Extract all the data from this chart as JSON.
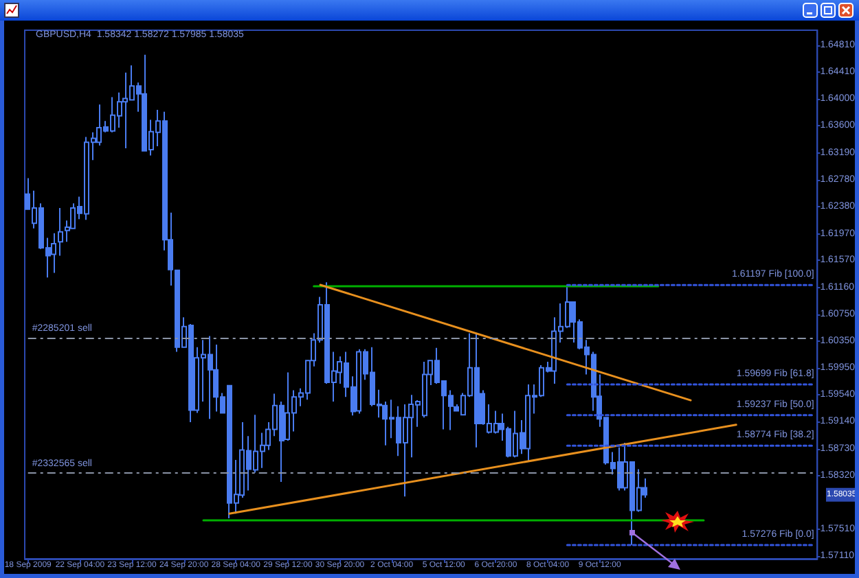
{
  "chart_data": {
    "type": "candlestick",
    "title": "GBPUSD,H4  1.58342 1.58272 1.57985 1.58035",
    "categories": [
      "18 Sep 2009",
      null,
      null,
      null,
      null,
      null,
      null,
      null,
      "22 Sep 04:00",
      null,
      null,
      null,
      null,
      null,
      null,
      null,
      "23 Sep 12:00",
      null,
      null,
      null,
      null,
      null,
      null,
      null,
      "24 Sep 20:00",
      null,
      null,
      null,
      null,
      null,
      null,
      null,
      "28 Sep 04:00",
      null,
      null,
      null,
      null,
      null,
      null,
      null,
      "29 Sep 12:00",
      null,
      null,
      null,
      null,
      null,
      null,
      null,
      "30 Sep 20:00",
      null,
      null,
      null,
      null,
      null,
      null,
      null,
      "2 Oct 04:00",
      null,
      null,
      null,
      null,
      null,
      null,
      null,
      "5 Oct 12:00",
      null,
      null,
      null,
      null,
      null,
      null,
      null,
      "6 Oct 20:00",
      null,
      null,
      null,
      null,
      null,
      null,
      null,
      "8 Oct 04:00",
      null,
      null,
      null,
      null,
      null,
      null,
      null,
      "9 Oct 12:00",
      null,
      null,
      null,
      null,
      null,
      null,
      null,
      null,
      null,
      null,
      null,
      null,
      null,
      null,
      null,
      null,
      null,
      null,
      null,
      null,
      null,
      null,
      null,
      null,
      null,
      null,
      null,
      null,
      null,
      null,
      null,
      null,
      null
    ],
    "ylim": [
      1.5707,
      1.6504
    ],
    "yticks": [
      {
        "value": 1.6481,
        "label": "1.64810"
      },
      {
        "value": 1.6441,
        "label": "1.64410"
      },
      {
        "value": 1.64,
        "label": "1.64000"
      },
      {
        "value": 1.636,
        "label": "1.63600"
      },
      {
        "value": 1.6319,
        "label": "1.63190"
      },
      {
        "value": 1.6278,
        "label": "1.62780"
      },
      {
        "value": 1.6238,
        "label": "1.62380"
      },
      {
        "value": 1.6197,
        "label": "1.61970"
      },
      {
        "value": 1.6157,
        "label": "1.61570"
      },
      {
        "value": 1.6116,
        "label": "1.61160"
      },
      {
        "value": 1.6075,
        "label": "1.60750"
      },
      {
        "value": 1.6035,
        "label": "1.60350"
      },
      {
        "value": 1.5995,
        "label": "1.59950"
      },
      {
        "value": 1.5954,
        "label": "1.59540"
      },
      {
        "value": 1.5914,
        "label": "1.59140"
      },
      {
        "value": 1.5873,
        "label": "1.58730"
      },
      {
        "value": 1.5832,
        "label": "1.58320"
      },
      {
        "value": 1.5751,
        "label": "1.57510"
      },
      {
        "value": 1.5711,
        "label": "1.57110"
      }
    ],
    "marker": "none",
    "series": [
      {
        "color": "#4a7cf0",
        "ohlc": [
          [
            1.6257,
            1.6281,
            1.6233,
            1.6234
          ],
          [
            1.6213,
            1.6262,
            1.6205,
            1.6236
          ],
          [
            1.6236,
            1.6243,
            1.6174,
            1.6176
          ],
          [
            1.6176,
            1.6191,
            1.6131,
            1.6164
          ],
          [
            1.6166,
            1.6198,
            1.6138,
            1.6182
          ],
          [
            1.6185,
            1.6236,
            1.6164,
            1.62
          ],
          [
            1.6202,
            1.6217,
            1.6185,
            1.6207
          ],
          [
            1.6205,
            1.6243,
            1.6204,
            1.6236
          ],
          [
            1.6238,
            1.6253,
            1.6219,
            1.6228
          ],
          [
            1.6227,
            1.6343,
            1.6218,
            1.6335
          ],
          [
            1.6335,
            1.635,
            1.6308,
            1.6341
          ],
          [
            1.6335,
            1.6392,
            1.633,
            1.6357
          ],
          [
            1.6358,
            1.6367,
            1.635,
            1.6352
          ],
          [
            1.6352,
            1.6403,
            1.635,
            1.6376
          ],
          [
            1.6375,
            1.641,
            1.6357,
            1.6396
          ],
          [
            1.6396,
            1.644,
            1.6326,
            1.6401
          ],
          [
            1.6399,
            1.6451,
            1.6398,
            1.642
          ],
          [
            1.642,
            1.6425,
            1.6381,
            1.6408
          ],
          [
            1.6408,
            1.6467,
            1.6321,
            1.6322
          ],
          [
            1.6324,
            1.6369,
            1.6315,
            1.6351
          ],
          [
            1.635,
            1.6384,
            1.6329,
            1.6367
          ],
          [
            1.6367,
            1.6381,
            1.6172,
            1.6188
          ],
          [
            1.6188,
            1.6229,
            1.6119,
            1.6143
          ],
          [
            1.6142,
            1.6143,
            1.6019,
            1.6026
          ],
          [
            1.6026,
            1.6071,
            1.6025,
            1.6057
          ],
          [
            1.6059,
            1.6061,
            1.5913,
            1.5931
          ],
          [
            1.5931,
            1.6026,
            1.5927,
            1.601
          ],
          [
            1.601,
            1.6037,
            1.5944,
            1.6015
          ],
          [
            1.6015,
            1.6043,
            1.5918,
            1.5992
          ],
          [
            1.5992,
            1.603,
            1.5929,
            1.5951
          ],
          [
            1.5951,
            1.5957,
            1.5926,
            1.5927
          ],
          [
            1.5968,
            1.5969,
            1.5768,
            1.5791
          ],
          [
            1.5791,
            1.5856,
            1.5775,
            1.5804
          ],
          [
            1.5803,
            1.5913,
            1.5799,
            1.5871
          ],
          [
            1.587,
            1.5892,
            1.581,
            1.5842
          ],
          [
            1.5841,
            1.5924,
            1.5837,
            1.5869
          ],
          [
            1.5869,
            1.5897,
            1.5844,
            1.5878
          ],
          [
            1.5878,
            1.5913,
            1.5871,
            1.5902
          ],
          [
            1.5902,
            1.5956,
            1.5892,
            1.5938
          ],
          [
            1.5938,
            1.5944,
            1.5823,
            1.5885
          ],
          [
            1.5887,
            1.5988,
            1.5885,
            1.5927
          ],
          [
            1.5927,
            1.5961,
            1.5899,
            1.5951
          ],
          [
            1.5951,
            1.5964,
            1.5937,
            1.5957
          ],
          [
            1.5957,
            1.6007,
            1.5947,
            1.6006
          ],
          [
            1.6006,
            1.6047,
            1.5997,
            1.6037
          ],
          [
            1.6037,
            1.6102,
            1.6033,
            1.609
          ],
          [
            1.609,
            1.6124,
            1.5971,
            1.5973
          ],
          [
            1.5973,
            1.6019,
            1.5944,
            1.599
          ],
          [
            1.5988,
            1.6012,
            1.5971,
            1.6004
          ],
          [
            1.6002,
            1.6019,
            1.5951,
            1.5966
          ],
          [
            1.5966,
            1.5982,
            1.5923,
            1.5929
          ],
          [
            1.593,
            1.6023,
            1.5926,
            1.6019
          ],
          [
            1.6019,
            1.6023,
            1.5977,
            1.5986
          ],
          [
            1.5988,
            1.6026,
            1.5937,
            1.594
          ],
          [
            1.5938,
            1.5962,
            1.592,
            1.594
          ],
          [
            1.5938,
            1.5944,
            1.5878,
            1.5918
          ],
          [
            1.592,
            1.5947,
            1.5889,
            1.5918
          ],
          [
            1.592,
            1.5937,
            1.5862,
            1.5882
          ],
          [
            1.5882,
            1.594,
            1.5801,
            1.592
          ],
          [
            1.592,
            1.5954,
            1.586,
            1.594
          ],
          [
            1.5939,
            1.5946,
            1.5906,
            1.5944
          ],
          [
            1.5923,
            1.6004,
            1.592,
            1.5985
          ],
          [
            1.5985,
            1.6007,
            1.5969,
            1.6006
          ],
          [
            1.6006,
            1.6025,
            1.5971,
            1.5973
          ],
          [
            1.5975,
            1.5976,
            1.5902,
            1.5953
          ],
          [
            1.5953,
            1.5961,
            1.5901,
            1.5937
          ],
          [
            1.5936,
            1.594,
            1.5929,
            1.593
          ],
          [
            1.5924,
            1.5957,
            1.5923,
            1.5953
          ],
          [
            1.5953,
            1.6047,
            1.5951,
            1.5995
          ],
          [
            1.5995,
            1.6047,
            1.5875,
            1.5911
          ],
          [
            1.5956,
            1.5961,
            1.5909,
            1.5911
          ],
          [
            1.5898,
            1.594,
            1.5896,
            1.5911
          ],
          [
            1.5898,
            1.593,
            1.5896,
            1.5911
          ],
          [
            1.5911,
            1.5926,
            1.5885,
            1.5902
          ],
          [
            1.5903,
            1.5906,
            1.586,
            1.5862
          ],
          [
            1.5862,
            1.593,
            1.586,
            1.5896
          ],
          [
            1.5897,
            1.5916,
            1.5865,
            1.5873
          ],
          [
            1.5873,
            1.597,
            1.5854,
            1.5953
          ],
          [
            1.5953,
            1.597,
            1.5926,
            1.5951
          ],
          [
            1.5953,
            1.5999,
            1.5951,
            1.5995
          ],
          [
            1.5995,
            1.6004,
            1.5988,
            1.599
          ],
          [
            1.599,
            1.6071,
            1.5971,
            1.605
          ],
          [
            1.605,
            1.6092,
            1.6033,
            1.6057
          ],
          [
            1.6057,
            1.612,
            1.6055,
            1.6094
          ],
          [
            1.6094,
            1.6095,
            1.6033,
            1.6064
          ],
          [
            1.6064,
            1.6068,
            1.6023,
            1.6025
          ],
          [
            1.6026,
            1.6037,
            1.5985,
            1.6015
          ],
          [
            1.6015,
            1.6019,
            1.593,
            1.5951
          ],
          [
            1.5952,
            1.5985,
            1.5906,
            1.5918
          ],
          [
            1.592,
            1.5921,
            1.5849,
            1.5852
          ],
          [
            1.5852,
            1.5868,
            1.5834,
            1.5843
          ],
          [
            1.5853,
            1.5875,
            1.581,
            1.5814
          ],
          [
            1.5814,
            1.5882,
            1.581,
            1.5853
          ],
          [
            1.5853,
            1.5854,
            1.5728,
            1.578
          ],
          [
            1.578,
            1.5842,
            1.5778,
            1.5814
          ],
          [
            1.5814,
            1.5828,
            1.5799,
            1.58035
          ],
          null,
          null,
          null,
          null,
          null,
          null,
          null,
          null,
          null,
          null,
          null,
          null,
          null,
          null,
          null,
          null,
          null,
          null,
          null,
          null,
          null,
          null,
          null,
          null,
          null,
          null
        ]
      },
      {
        "type": "line",
        "color": "#00b000",
        "line_style": "solid",
        "values": [
          null,
          null,
          null,
          null,
          null,
          null,
          null,
          null,
          null,
          null,
          null,
          null,
          null,
          null,
          null,
          null,
          null,
          null,
          null,
          null,
          null,
          null,
          null,
          null,
          null,
          null,
          null,
          null,
          null,
          null,
          null,
          null,
          null,
          null,
          null,
          null,
          null,
          null,
          null,
          null,
          null,
          null,
          null,
          null,
          1.6118,
          null,
          null,
          null,
          null,
          null,
          null,
          null,
          null,
          null,
          null,
          null,
          null,
          null,
          null,
          null,
          null,
          null,
          null,
          null,
          null,
          null,
          null,
          null,
          null,
          null,
          null,
          null,
          null,
          null,
          null,
          null,
          null,
          null,
          null,
          null,
          null,
          null,
          null,
          null,
          null,
          null,
          null,
          null,
          null,
          null,
          null,
          null,
          null,
          null,
          null,
          null,
          null,
          1.6118,
          null,
          null,
          null,
          null,
          null,
          null,
          null,
          null,
          null,
          null,
          null,
          null,
          null,
          null,
          null,
          null,
          null,
          null,
          null,
          null,
          null,
          null,
          null,
          null
        ]
      },
      {
        "type": "line",
        "color": "#00b000",
        "line_style": "solid",
        "values": [
          null,
          null,
          null,
          null,
          null,
          null,
          null,
          null,
          null,
          null,
          null,
          null,
          null,
          null,
          null,
          null,
          null,
          null,
          null,
          null,
          null,
          null,
          null,
          null,
          null,
          null,
          null,
          1.5765,
          null,
          null,
          null,
          null,
          null,
          null,
          null,
          null,
          null,
          null,
          null,
          null,
          null,
          null,
          null,
          null,
          null,
          null,
          null,
          null,
          null,
          null,
          null,
          null,
          null,
          null,
          null,
          null,
          null,
          null,
          null,
          null,
          null,
          null,
          null,
          null,
          null,
          null,
          null,
          null,
          null,
          null,
          null,
          null,
          null,
          null,
          null,
          null,
          null,
          null,
          null,
          null,
          null,
          null,
          null,
          null,
          null,
          null,
          null,
          null,
          null,
          null,
          null,
          null,
          null,
          null,
          null,
          null,
          null,
          null,
          null,
          null,
          null,
          null,
          null,
          null,
          1.5765,
          null,
          null,
          null,
          null,
          null,
          null,
          null,
          null,
          null,
          null,
          null,
          null,
          null,
          null,
          null,
          null,
          null
        ]
      },
      {
        "type": "line",
        "color": "#e8901e",
        "line_style": "solid",
        "values": [
          null,
          null,
          null,
          null,
          null,
          null,
          null,
          null,
          null,
          null,
          null,
          null,
          null,
          null,
          null,
          null,
          null,
          null,
          null,
          null,
          null,
          null,
          null,
          null,
          null,
          null,
          null,
          null,
          null,
          null,
          null,
          null,
          null,
          null,
          null,
          null,
          null,
          null,
          null,
          null,
          null,
          null,
          null,
          null,
          null,
          1.612,
          null,
          null,
          null,
          null,
          null,
          null,
          null,
          null,
          null,
          null,
          null,
          null,
          null,
          null,
          null,
          null,
          null,
          null,
          null,
          null,
          null,
          null,
          null,
          null,
          null,
          null,
          null,
          null,
          null,
          null,
          null,
          null,
          null,
          null,
          null,
          null,
          null,
          null,
          null,
          null,
          null,
          null,
          null,
          null,
          null,
          null,
          null,
          null,
          null,
          null,
          null,
          null,
          null,
          null,
          null,
          null,
          1.5946,
          null,
          null,
          null,
          null,
          null,
          null,
          null,
          null,
          null,
          null,
          null,
          null,
          null,
          null,
          null,
          null,
          null,
          null,
          null
        ]
      },
      {
        "type": "line",
        "color": "#e8901e",
        "line_style": "solid",
        "values": [
          null,
          null,
          null,
          null,
          null,
          null,
          null,
          null,
          null,
          null,
          null,
          null,
          null,
          null,
          null,
          null,
          null,
          null,
          null,
          null,
          null,
          null,
          null,
          null,
          null,
          null,
          null,
          null,
          null,
          null,
          null,
          1.5775,
          null,
          null,
          null,
          null,
          null,
          null,
          null,
          null,
          null,
          null,
          null,
          null,
          null,
          null,
          null,
          null,
          null,
          null,
          null,
          null,
          null,
          null,
          null,
          null,
          null,
          null,
          null,
          null,
          null,
          null,
          null,
          null,
          null,
          null,
          null,
          null,
          null,
          null,
          null,
          null,
          null,
          null,
          null,
          null,
          null,
          null,
          null,
          null,
          null,
          null,
          null,
          null,
          null,
          null,
          null,
          null,
          null,
          null,
          null,
          null,
          null,
          null,
          null,
          null,
          null,
          null,
          null,
          null,
          null,
          null,
          null,
          null,
          null,
          null,
          null,
          null,
          null,
          1.5909,
          null,
          null,
          null,
          null,
          null,
          null,
          null,
          null,
          null,
          null,
          null,
          null
        ]
      },
      {
        "type": "line",
        "name": "1.61197 Fib [100.0]",
        "color": "#3355dd",
        "line_style": "dotted",
        "values": [
          null,
          null,
          null,
          null,
          null,
          null,
          null,
          null,
          null,
          null,
          null,
          null,
          null,
          null,
          null,
          null,
          null,
          null,
          null,
          null,
          null,
          null,
          null,
          null,
          null,
          null,
          null,
          null,
          null,
          null,
          null,
          null,
          null,
          null,
          null,
          null,
          null,
          null,
          null,
          null,
          null,
          null,
          null,
          null,
          null,
          null,
          null,
          null,
          null,
          null,
          null,
          null,
          null,
          null,
          null,
          null,
          null,
          null,
          null,
          null,
          null,
          null,
          null,
          null,
          null,
          null,
          null,
          null,
          null,
          null,
          null,
          null,
          null,
          null,
          null,
          null,
          null,
          null,
          null,
          null,
          null,
          null,
          null,
          1.61197,
          null,
          null,
          null,
          null,
          null,
          null,
          null,
          null,
          null,
          null,
          null,
          null,
          null,
          null,
          null,
          null,
          null,
          null,
          null,
          null,
          null,
          null,
          null,
          null,
          null,
          null,
          null,
          null,
          null,
          null,
          null,
          null,
          null,
          null,
          null,
          null,
          null,
          1.61197
        ]
      },
      {
        "type": "line",
        "name": "1.59699 Fib [61.8]",
        "color": "#3355dd",
        "line_style": "dotted",
        "values": [
          null,
          null,
          null,
          null,
          null,
          null,
          null,
          null,
          null,
          null,
          null,
          null,
          null,
          null,
          null,
          null,
          null,
          null,
          null,
          null,
          null,
          null,
          null,
          null,
          null,
          null,
          null,
          null,
          null,
          null,
          null,
          null,
          null,
          null,
          null,
          null,
          null,
          null,
          null,
          null,
          null,
          null,
          null,
          null,
          null,
          null,
          null,
          null,
          null,
          null,
          null,
          null,
          null,
          null,
          null,
          null,
          null,
          null,
          null,
          null,
          null,
          null,
          null,
          null,
          null,
          null,
          null,
          null,
          null,
          null,
          null,
          null,
          null,
          null,
          null,
          null,
          null,
          null,
          null,
          null,
          null,
          null,
          null,
          1.59699,
          null,
          null,
          null,
          null,
          null,
          null,
          null,
          null,
          null,
          null,
          null,
          null,
          null,
          null,
          null,
          null,
          null,
          null,
          null,
          null,
          null,
          null,
          null,
          null,
          null,
          null,
          null,
          null,
          null,
          null,
          null,
          null,
          null,
          null,
          null,
          null,
          null,
          1.59699
        ]
      },
      {
        "type": "line",
        "name": "1.59237 Fib [50.0]",
        "color": "#3355dd",
        "line_style": "dotted",
        "values": [
          null,
          null,
          null,
          null,
          null,
          null,
          null,
          null,
          null,
          null,
          null,
          null,
          null,
          null,
          null,
          null,
          null,
          null,
          null,
          null,
          null,
          null,
          null,
          null,
          null,
          null,
          null,
          null,
          null,
          null,
          null,
          null,
          null,
          null,
          null,
          null,
          null,
          null,
          null,
          null,
          null,
          null,
          null,
          null,
          null,
          null,
          null,
          null,
          null,
          null,
          null,
          null,
          null,
          null,
          null,
          null,
          null,
          null,
          null,
          null,
          null,
          null,
          null,
          null,
          null,
          null,
          null,
          null,
          null,
          null,
          null,
          null,
          null,
          null,
          null,
          null,
          null,
          null,
          null,
          null,
          null,
          null,
          null,
          1.59237,
          null,
          null,
          null,
          null,
          null,
          null,
          null,
          null,
          null,
          null,
          null,
          null,
          null,
          null,
          null,
          null,
          null,
          null,
          null,
          null,
          null,
          null,
          null,
          null,
          null,
          null,
          null,
          null,
          null,
          null,
          null,
          null,
          null,
          null,
          null,
          null,
          null,
          1.59237
        ]
      },
      {
        "type": "line",
        "name": "1.58774 Fib [38.2]",
        "color": "#3355dd",
        "line_style": "dotted",
        "values": [
          null,
          null,
          null,
          null,
          null,
          null,
          null,
          null,
          null,
          null,
          null,
          null,
          null,
          null,
          null,
          null,
          null,
          null,
          null,
          null,
          null,
          null,
          null,
          null,
          null,
          null,
          null,
          null,
          null,
          null,
          null,
          null,
          null,
          null,
          null,
          null,
          null,
          null,
          null,
          null,
          null,
          null,
          null,
          null,
          null,
          null,
          null,
          null,
          null,
          null,
          null,
          null,
          null,
          null,
          null,
          null,
          null,
          null,
          null,
          null,
          null,
          null,
          null,
          null,
          null,
          null,
          null,
          null,
          null,
          null,
          null,
          null,
          null,
          null,
          null,
          null,
          null,
          null,
          null,
          null,
          null,
          null,
          null,
          1.58774,
          null,
          null,
          null,
          null,
          null,
          null,
          null,
          null,
          null,
          null,
          null,
          null,
          null,
          null,
          null,
          null,
          null,
          null,
          null,
          null,
          null,
          null,
          null,
          null,
          null,
          null,
          null,
          null,
          null,
          null,
          null,
          null,
          null,
          null,
          null,
          null,
          null,
          1.58774
        ]
      },
      {
        "type": "line",
        "name": "1.57276 Fib [0.0]",
        "color": "#3355dd",
        "line_style": "dotted",
        "values": [
          null,
          null,
          null,
          null,
          null,
          null,
          null,
          null,
          null,
          null,
          null,
          null,
          null,
          null,
          null,
          null,
          null,
          null,
          null,
          null,
          null,
          null,
          null,
          null,
          null,
          null,
          null,
          null,
          null,
          null,
          null,
          null,
          null,
          null,
          null,
          null,
          null,
          null,
          null,
          null,
          null,
          null,
          null,
          null,
          null,
          null,
          null,
          null,
          null,
          null,
          null,
          null,
          null,
          null,
          null,
          null,
          null,
          null,
          null,
          null,
          null,
          null,
          null,
          null,
          null,
          null,
          null,
          null,
          null,
          null,
          null,
          null,
          null,
          null,
          null,
          null,
          null,
          null,
          null,
          null,
          null,
          null,
          null,
          1.57276,
          null,
          null,
          null,
          null,
          null,
          null,
          null,
          null,
          null,
          null,
          null,
          null,
          null,
          null,
          null,
          null,
          null,
          null,
          null,
          null,
          null,
          null,
          null,
          null,
          null,
          null,
          null,
          null,
          null,
          null,
          null,
          null,
          null,
          null,
          null,
          null,
          null,
          1.57276
        ]
      }
    ],
    "ref_lines": [
      {
        "axis": "y",
        "value": 1.604,
        "label": "#2285201 sell",
        "color": "#8a93a6",
        "line_style": "dashed"
      },
      {
        "axis": "y",
        "value": 1.5836,
        "label": "#2332565 sell",
        "color": "#8a93a6",
        "line_style": "dashed"
      }
    ],
    "annotations": [
      "1.58035"
    ]
  }
}
